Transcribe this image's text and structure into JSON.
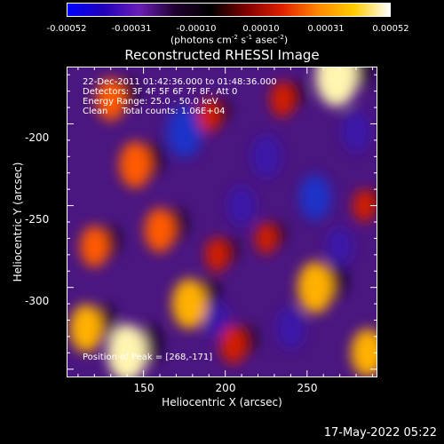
{
  "colorbar": {
    "colors": [
      "#0000ff",
      "#2000b8",
      "#6a1fb8",
      "#200030",
      "#000000",
      "#800000",
      "#e02000",
      "#ff8800",
      "#ffcc00",
      "#ffffff"
    ],
    "ticks": [
      "-0.00052",
      "-0.00031",
      "-0.00010",
      "0.00010",
      "0.00031",
      "0.00052"
    ],
    "unit_prefix": "(photons cm",
    "unit_exp1": "-2",
    "unit_mid": " s",
    "unit_exp2": "-1",
    "unit_mid2": " asec",
    "unit_exp3": "-2",
    "unit_suffix": ")"
  },
  "chart_data": {
    "type": "heatmap",
    "title": "Reconstructed RHESSI Image",
    "xlabel": "Heliocentric X (arcsec)",
    "ylabel": "Heliocentric Y (arcsec)",
    "xlim": [
      103,
      293
    ],
    "ylim": [
      -355,
      -165
    ],
    "xticks": [
      150,
      200,
      250
    ],
    "yticks": [
      -200,
      -250,
      -300
    ],
    "value_range": [
      -0.00052,
      0.00052
    ],
    "sources": [
      {
        "x": 268,
        "y": -171,
        "value": 0.00052
      },
      {
        "x": 140,
        "y": -340,
        "value": 0.00048
      },
      {
        "x": 115,
        "y": -325,
        "value": 0.00035
      },
      {
        "x": 178,
        "y": -310,
        "value": 0.00038
      },
      {
        "x": 160,
        "y": -265,
        "value": 0.0003
      },
      {
        "x": 145,
        "y": -225,
        "value": 0.00033
      },
      {
        "x": 130,
        "y": -185,
        "value": 0.00028
      },
      {
        "x": 255,
        "y": -300,
        "value": 0.0004
      },
      {
        "x": 287,
        "y": -340,
        "value": 0.00035
      },
      {
        "x": 205,
        "y": -335,
        "value": 0.00022
      },
      {
        "x": 120,
        "y": -275,
        "value": 0.00026
      },
      {
        "x": 235,
        "y": -185,
        "value": 0.00018
      },
      {
        "x": 190,
        "y": -195,
        "value": 0.00015
      },
      {
        "x": 225,
        "y": -270,
        "value": 0.00012
      },
      {
        "x": 285,
        "y": -250,
        "value": 0.00014
      },
      {
        "x": 195,
        "y": -280,
        "value": 0.00016
      }
    ],
    "sinks": [
      {
        "x": 175,
        "y": -205,
        "value": -0.0004
      },
      {
        "x": 255,
        "y": -245,
        "value": -0.00032
      },
      {
        "x": 225,
        "y": -220,
        "value": -0.00028
      },
      {
        "x": 240,
        "y": -325,
        "value": -0.00026
      },
      {
        "x": 210,
        "y": -250,
        "value": -0.00024
      },
      {
        "x": 270,
        "y": -275,
        "value": -0.00022
      },
      {
        "x": 195,
        "y": -320,
        "value": -0.0002
      },
      {
        "x": 280,
        "y": -205,
        "value": -0.00025
      }
    ]
  },
  "info": {
    "line1": "22-Dec-2011 01:42:36.000 to 01:48:36.000",
    "line2": "Detectors: 3F 4F 5F 6F 7F 8F, Att 0",
    "line3": "Energy Range: 25.0 - 50.0 keV",
    "line4": "Clean     Total counts: 1.06E+04",
    "peak": "Position of Peak = [268,-171]"
  },
  "timestamp": "17-May-2022 05:22"
}
